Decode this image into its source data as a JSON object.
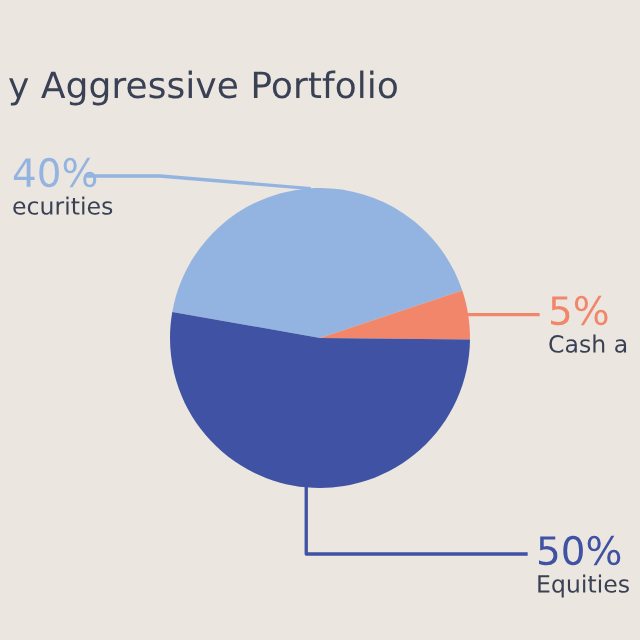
{
  "chart_data": {
    "type": "pie",
    "title": "y Aggressive Portfolio",
    "categories": [
      "ecurities",
      "Cash a",
      "Equities"
    ],
    "values": [
      40,
      5,
      50
    ],
    "value_labels": [
      "40%",
      "5%",
      "50%"
    ],
    "colors": [
      "#93b4e0",
      "#f2866a",
      "#3f52a3"
    ]
  }
}
